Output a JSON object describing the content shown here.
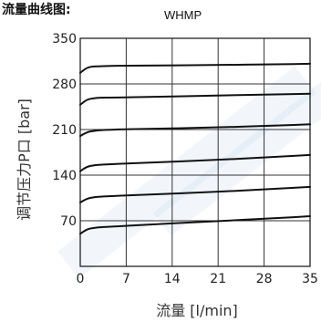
{
  "figure": {
    "title": "流量曲线图:",
    "subtitle": "WHMP"
  },
  "chart_data": {
    "type": "line",
    "title": "WHMP",
    "xlabel": "流量 [l/min]",
    "ylabel": "调节压力P口 [bar]",
    "xlim": [
      0,
      35
    ],
    "ylim": [
      0,
      350
    ],
    "xticks": [
      0,
      7,
      14,
      21,
      28,
      35
    ],
    "yticks": [
      70,
      140,
      210,
      280,
      350
    ],
    "grid": true,
    "series": [
      {
        "x": [
          0,
          1,
          2,
          3,
          5,
          10,
          20,
          30,
          35
        ],
        "values": [
          50,
          57,
          59,
          60,
          61,
          64,
          69,
          74,
          77
        ]
      },
      {
        "x": [
          0,
          1,
          2,
          3,
          5,
          10,
          20,
          30,
          35
        ],
        "values": [
          98,
          104,
          106,
          107,
          108,
          110,
          114,
          119,
          122
        ]
      },
      {
        "x": [
          0,
          1,
          2,
          3,
          5,
          10,
          20,
          30,
          35
        ],
        "values": [
          146,
          153,
          155,
          156,
          157,
          159,
          163,
          168,
          171
        ]
      },
      {
        "x": [
          0,
          1,
          2,
          3,
          5,
          10,
          20,
          30,
          35
        ],
        "values": [
          200,
          206,
          208,
          209,
          210,
          211,
          213,
          216,
          218
        ]
      },
      {
        "x": [
          0,
          1,
          2,
          3,
          5,
          10,
          20,
          30,
          35
        ],
        "values": [
          248,
          256,
          258,
          259,
          259,
          260,
          262,
          264,
          265
        ]
      },
      {
        "x": [
          0,
          1,
          2,
          3,
          5,
          10,
          20,
          30,
          35
        ],
        "values": [
          297,
          305,
          307,
          307,
          308,
          308,
          309,
          310,
          311
        ]
      }
    ]
  }
}
